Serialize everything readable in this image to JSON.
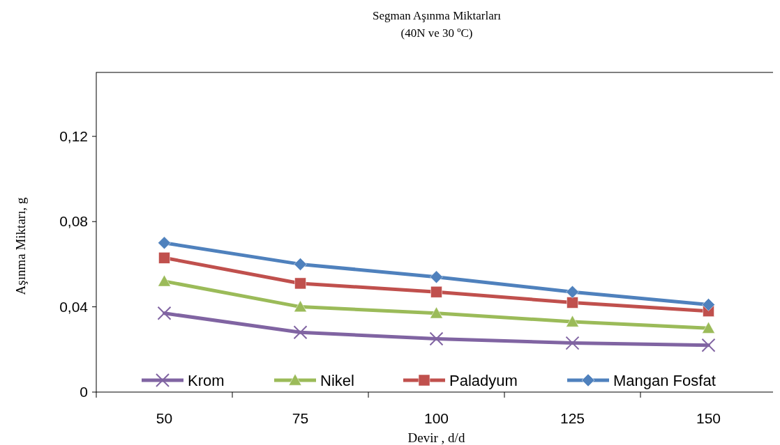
{
  "chart_data": {
    "type": "line",
    "title": "Segman Aşınma Miktarları",
    "subtitle": "(40N ve 30 ºC)",
    "xlabel": "Devir , d/d",
    "ylabel": "Aşınma Miktarı, g",
    "categories": [
      "50",
      "75",
      "100",
      "125",
      "150"
    ],
    "ylim": [
      0,
      0.15
    ],
    "yticks": [
      0,
      {
        "value": 0.04,
        "label": "0,04"
      },
      {
        "value": 0.08,
        "label": "0,08"
      },
      {
        "value": 0.12,
        "label": "0,12"
      }
    ],
    "grid": false,
    "legend": "bottom",
    "series": [
      {
        "name": "Krom",
        "color": "#8064a2",
        "marker": "cross",
        "values": [
          0.037,
          0.028,
          0.025,
          0.023,
          0.022
        ]
      },
      {
        "name": "Nikel",
        "color": "#9bbb59",
        "marker": "triangle",
        "values": [
          0.052,
          0.04,
          0.037,
          0.033,
          0.03
        ]
      },
      {
        "name": "Paladyum",
        "color": "#c0504d",
        "marker": "square",
        "values": [
          0.063,
          0.051,
          0.047,
          0.042,
          0.038
        ]
      },
      {
        "name": "Mangan Fosfat",
        "color": "#4f81bd",
        "marker": "diamond",
        "values": [
          0.07,
          0.06,
          0.054,
          0.047,
          0.041
        ]
      }
    ]
  }
}
